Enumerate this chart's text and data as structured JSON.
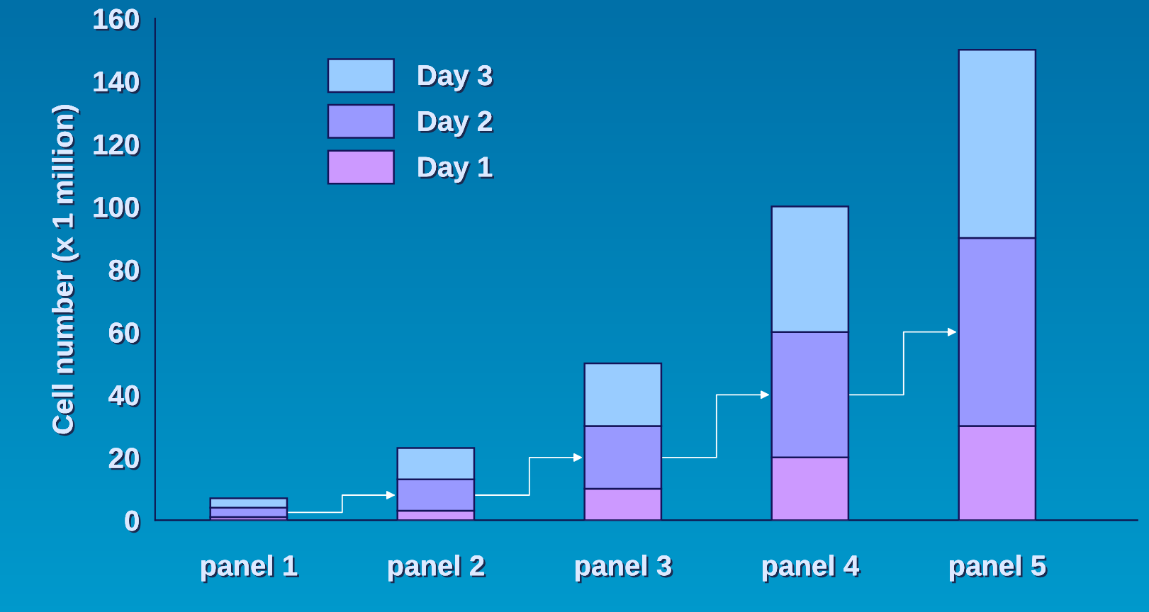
{
  "chart_data": {
    "type": "bar",
    "stacked": true,
    "ylabel": "Cell number (x 1 million)",
    "categories": [
      "panel 1",
      "panel 2",
      "panel 3",
      "panel 4",
      "panel 5"
    ],
    "series": [
      {
        "name": "Day 1",
        "color": "#cc99ff",
        "values": [
          1,
          3,
          10,
          20,
          30
        ]
      },
      {
        "name": "Day 2",
        "color": "#9999ff",
        "values": [
          3,
          10,
          20,
          40,
          60
        ]
      },
      {
        "name": "Day 3",
        "color": "#99ccff",
        "values": [
          3,
          10,
          20,
          40,
          60
        ]
      }
    ],
    "ylim": [
      0,
      160
    ],
    "yticks": [
      0,
      20,
      40,
      60,
      80,
      100,
      120,
      140,
      160
    ],
    "grid": false,
    "legend": "top left"
  }
}
